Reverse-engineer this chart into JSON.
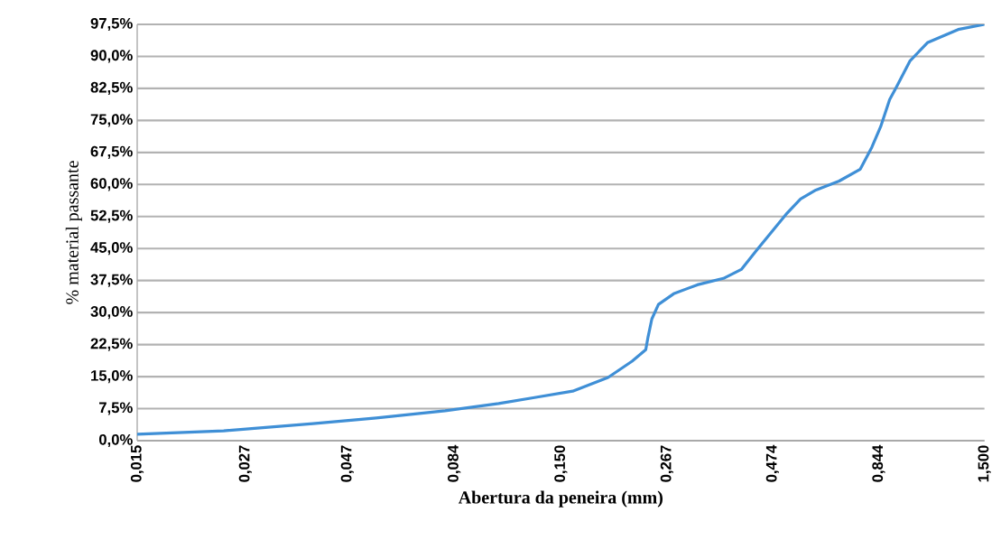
{
  "chart_data": {
    "type": "line",
    "xlabel": "Abertura da peneira (mm)",
    "ylabel": "% material passante",
    "log": "x",
    "grid": "y",
    "marker": "none",
    "line_style": "solid",
    "xlim": [
      0.015,
      1.5
    ],
    "ylim": [
      0,
      97.5
    ],
    "xticks": [
      {
        "value": 0.015,
        "label": "0,015"
      },
      {
        "value": 0.027,
        "label": "0,027"
      },
      {
        "value": 0.047,
        "label": "0,047"
      },
      {
        "value": 0.084,
        "label": "0,084"
      },
      {
        "value": 0.15,
        "label": "0,150"
      },
      {
        "value": 0.267,
        "label": "0,267"
      },
      {
        "value": 0.474,
        "label": "0,474"
      },
      {
        "value": 0.844,
        "label": "0,844"
      },
      {
        "value": 1.5,
        "label": "1,500"
      }
    ],
    "yticks": [
      {
        "value": 0,
        "label": "0,0%"
      },
      {
        "value": 7.5,
        "label": "7,5%"
      },
      {
        "value": 15,
        "label": "15,0%"
      },
      {
        "value": 22.5,
        "label": "22,5%"
      },
      {
        "value": 30,
        "label": "30,0%"
      },
      {
        "value": 37.5,
        "label": "37,5%"
      },
      {
        "value": 45,
        "label": "45,0%"
      },
      {
        "value": 52.5,
        "label": "52,5%"
      },
      {
        "value": 60,
        "label": "60,0%"
      },
      {
        "value": 67.5,
        "label": "67,5%"
      },
      {
        "value": 75,
        "label": "75,0%"
      },
      {
        "value": 82.5,
        "label": "82,5%"
      },
      {
        "value": 90,
        "label": "90,0%"
      },
      {
        "value": 97.5,
        "label": "97,5%"
      }
    ],
    "x": [
      0.015,
      0.024,
      0.039,
      0.055,
      0.08,
      0.107,
      0.13,
      0.16,
      0.194,
      0.221,
      0.238,
      0.241,
      0.246,
      0.255,
      0.277,
      0.315,
      0.363,
      0.4,
      0.435,
      0.471,
      0.51,
      0.552,
      0.6,
      0.681,
      0.764,
      0.813,
      0.853,
      0.896,
      0.927,
      1.0,
      1.1,
      1.3,
      1.5
    ],
    "series": [
      {
        "color": "#3f8fd6",
        "values": [
          1.5,
          2.3,
          4.0,
          5.3,
          7.0,
          8.7,
          10.1,
          11.6,
          14.8,
          18.6,
          21.3,
          24.3,
          28.5,
          31.9,
          34.4,
          36.5,
          38.0,
          40.1,
          44.6,
          48.8,
          53.0,
          56.6,
          58.7,
          60.8,
          63.6,
          68.7,
          73.5,
          79.9,
          82.6,
          88.9,
          93.2,
          96.3,
          97.5
        ]
      }
    ]
  }
}
